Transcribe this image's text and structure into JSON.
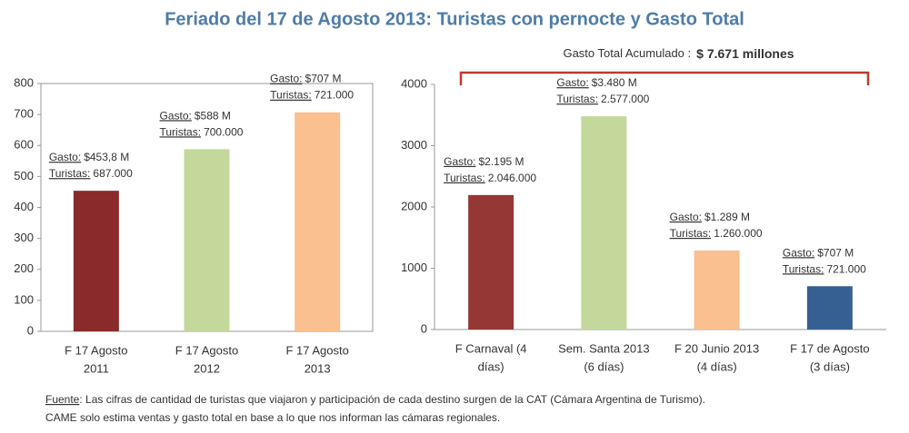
{
  "title": "Feriado del 17 de Agosto 2013: Turistas con pernocte y Gasto Total",
  "footnote": {
    "label": "Fuente",
    "lines": [
      ": Las cifras de cantidad de turistas que viajaron y participación de cada destino surgen de la CAT (Cámara Argentina de Turismo).",
      "CAME solo estima ventas y gasto total en base a lo que nos informan las cámaras regionales."
    ]
  },
  "chart_data": [
    {
      "type": "bar",
      "frame": true,
      "categories": [
        [
          "F 17 Agosto",
          "2011"
        ],
        [
          "F 17 Agosto",
          "2012"
        ],
        [
          "F 17 Agosto",
          "2013"
        ]
      ],
      "values": [
        453.8,
        588,
        707
      ],
      "value_labels": [
        "$453,8 M",
        "$588 M",
        "$707 M"
      ],
      "gasto_label": "Gasto:",
      "turistas_label": "Turistas:",
      "turistas": [
        "687.000",
        "700.000",
        "721.000"
      ],
      "colors": [
        "#8b2a2a",
        "#c3d89a",
        "#fac08f"
      ],
      "ylim": [
        0,
        800
      ],
      "yticks": [
        0,
        100,
        200,
        300,
        400,
        500,
        600,
        700,
        800
      ],
      "grid": false
    },
    {
      "type": "bar",
      "frame": false,
      "annotation": "Gasto Total Acumulado :",
      "annotation_value": "$ 7.671 millones",
      "categories": [
        [
          "F Carnaval (4",
          "días)"
        ],
        [
          "Sem. Santa 2013",
          "(6 días)"
        ],
        [
          "F 20 Junio 2013",
          "(4 días)"
        ],
        [
          "F 17 de Agosto",
          "(3 días)"
        ]
      ],
      "values": [
        2195,
        3480,
        1289,
        707
      ],
      "value_labels": [
        "$2.195 M",
        "$3.480 M",
        "$1.289 M",
        "$707 M"
      ],
      "gasto_label": "Gasto:",
      "turistas_label": "Turistas:",
      "turistas": [
        "2.046.000",
        "2.577.000",
        "1.260.000",
        "721.000"
      ],
      "colors": [
        "#953735",
        "#c3d89a",
        "#fac08f",
        "#376092"
      ],
      "ylim": [
        0,
        4000
      ],
      "yticks": [
        0,
        1000,
        2000,
        3000,
        4000
      ],
      "grid": false
    }
  ]
}
